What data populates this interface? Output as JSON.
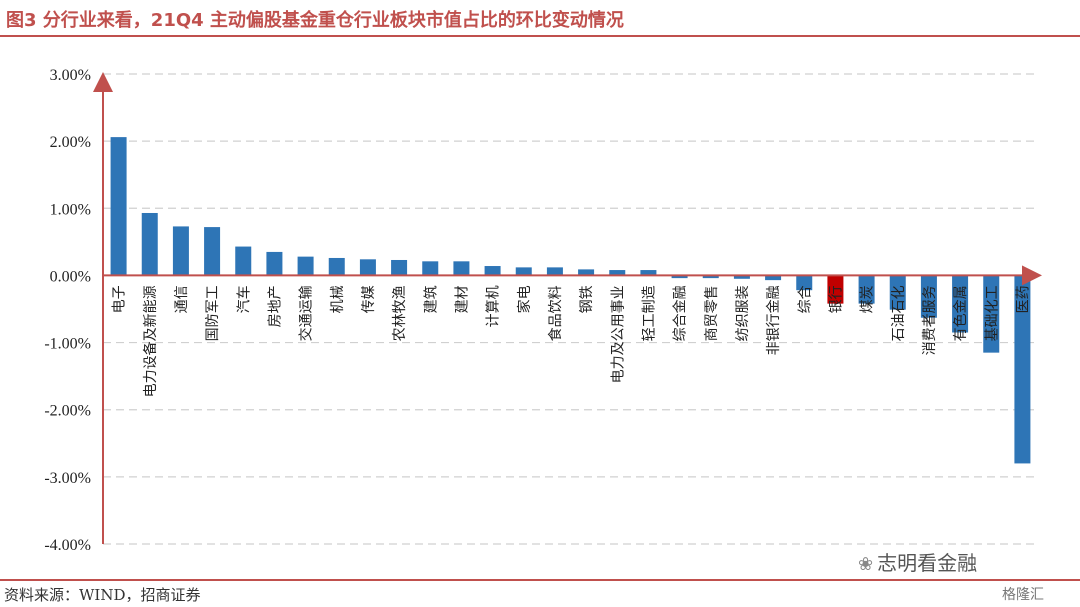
{
  "title": "图3  分行业来看，21Q4 主动偏股基金重仓行业板块市值占比的环比变动情况",
  "source": "资料来源：WIND，招商证券",
  "watermark": "志明看金融",
  "brand": "格隆汇",
  "colors": {
    "accent": "#c0504d",
    "bar": "#2e75b6",
    "highlight": "#c00000"
  },
  "chart_data": {
    "type": "bar",
    "title": "",
    "xlabel": "",
    "ylabel": "",
    "ylim": [
      -4,
      3
    ],
    "yticks": [
      "3.00%",
      "2.00%",
      "1.00%",
      "0.00%",
      "-1.00%",
      "-2.00%",
      "-3.00%",
      "-4.00%"
    ],
    "grid": true,
    "categories": [
      "电子",
      "电力设备及新能源",
      "通信",
      "国防军工",
      "汽车",
      "房地产",
      "交通运输",
      "机械",
      "传媒",
      "农林牧渔",
      "建筑",
      "建材",
      "计算机",
      "家电",
      "食品饮料",
      "钢铁",
      "电力及公用事业",
      "轻工制造",
      "综合金融",
      "商贸零售",
      "纺织服装",
      "非银行金融",
      "综合",
      "银行",
      "煤炭",
      "石油石化",
      "消费者服务",
      "有色金属",
      "基础化工",
      "医药"
    ],
    "values": [
      2.06,
      0.93,
      0.73,
      0.72,
      0.43,
      0.35,
      0.28,
      0.26,
      0.24,
      0.23,
      0.21,
      0.21,
      0.14,
      0.12,
      0.12,
      0.09,
      0.08,
      0.08,
      -0.04,
      -0.04,
      -0.05,
      -0.07,
      -0.22,
      -0.42,
      -0.42,
      -0.51,
      -0.63,
      -0.85,
      -1.15,
      -2.8
    ],
    "highlight_index": 23
  }
}
